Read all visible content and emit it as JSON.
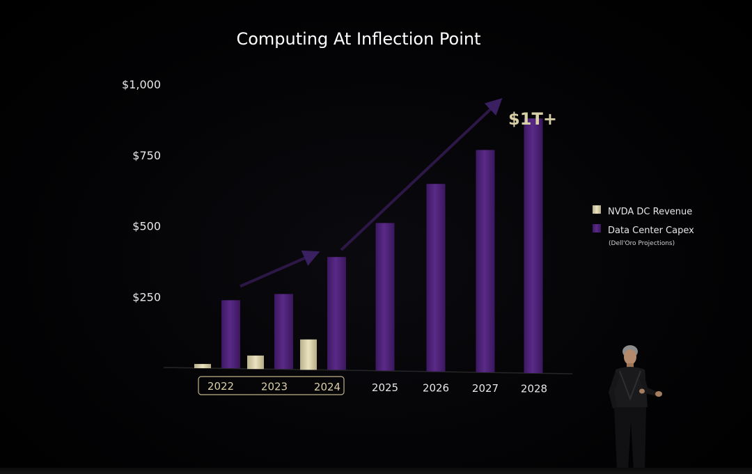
{
  "colors": {
    "background": "#000000",
    "revenue": "#d9d0ac",
    "capex": "#4a1f73",
    "capex_light": "#5e2a8c",
    "axis": "#2a2a2a",
    "bracket": "#bfb488",
    "trend_arrow": "#2c1747"
  },
  "chart_data": {
    "type": "bar",
    "title": "Computing At Inflection Point",
    "categories": [
      "2022",
      "2023",
      "2024",
      "2025",
      "2026",
      "2027",
      "2028"
    ],
    "historical_categories": [
      "2022",
      "2023",
      "2024"
    ],
    "series": [
      {
        "name": "NVDA DC Revenue",
        "values": [
          15,
          47,
          105,
          null,
          null,
          null,
          null
        ]
      },
      {
        "name": "Data Center Capex",
        "values": [
          240,
          262,
          390,
          505,
          635,
          745,
          845
        ]
      }
    ],
    "y_tick_labels": [
      "$250",
      "$500",
      "$750",
      "$1,000"
    ],
    "y_tick_values": [
      250,
      500,
      750,
      1000
    ],
    "ylim": [
      0,
      1000
    ],
    "xlabel": "",
    "ylabel": "",
    "grid": false,
    "legend_position": "right",
    "legend": [
      {
        "label": "NVDA DC Revenue",
        "sub": ""
      },
      {
        "label": "Data Center Capex",
        "sub": "(Dell'Oro Projections)"
      }
    ],
    "annotation": "$1T+"
  }
}
